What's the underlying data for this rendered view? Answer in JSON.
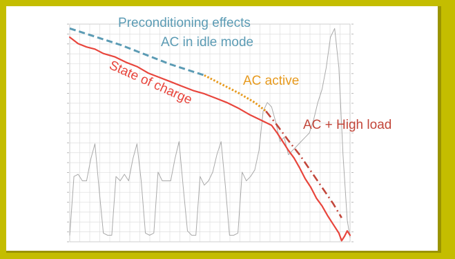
{
  "colors": {
    "background": "#c4bd00",
    "panel": "#ffffff",
    "state_of_charge": "#e8453c",
    "preconditioning": "#5b9bb4",
    "ac_active": "#e79a1e",
    "high_load": "#c2463a",
    "speed_trace": "#a9a9a9",
    "grid": "#dedede"
  },
  "chart_data": {
    "type": "line",
    "title": "",
    "xlabel": "",
    "ylabel": "",
    "xlim": [
      0,
      100
    ],
    "ylim": [
      0,
      100
    ],
    "grid": true,
    "legend": "none",
    "annotations": {
      "preconditioning": "Preconditioning effects",
      "idle_mode": "AC in idle mode",
      "state_of_charge": "State of charge",
      "ac_active": "AC active",
      "high_load": "AC + High load"
    },
    "series": [
      {
        "key": "soc",
        "style": "solid",
        "color": "#e8453c",
        "x": [
          0,
          3,
          6,
          9,
          12,
          16,
          20,
          24,
          28,
          32,
          36,
          40,
          44,
          48,
          52,
          56,
          60,
          64,
          68,
          72,
          74,
          76,
          78,
          80,
          82,
          84,
          86,
          88,
          90,
          92,
          94,
          96,
          97,
          98,
          99,
          100
        ],
        "y": [
          94,
          91,
          89.5,
          88.5,
          86.5,
          85,
          82.5,
          80.5,
          77.5,
          75.5,
          73.5,
          71.5,
          69.5,
          68,
          66,
          64,
          61.5,
          58.5,
          56,
          53.5,
          50,
          46,
          42,
          38.5,
          34,
          29,
          25,
          20,
          16.5,
          12,
          8,
          4,
          0.5,
          2.5,
          5,
          3
        ]
      },
      {
        "key": "preconditioning",
        "style": "dashed",
        "color": "#5b9bb4",
        "x": [
          0,
          6,
          12,
          18,
          24,
          30,
          36,
          42,
          48
        ],
        "y": [
          98,
          95.5,
          93,
          90.5,
          87.5,
          84.5,
          81.5,
          79,
          76.5
        ]
      },
      {
        "key": "ac_active",
        "style": "dotted",
        "color": "#e79a1e",
        "x": [
          48,
          54,
          60,
          66,
          70
        ],
        "y": [
          76.5,
          72.5,
          68.5,
          64,
          60
        ]
      },
      {
        "key": "high_load",
        "style": "dashdot",
        "color": "#c2463a",
        "x": [
          70,
          74,
          78,
          82,
          86,
          90,
          94,
          97
        ],
        "y": [
          60,
          53.5,
          46.5,
          40,
          32.5,
          25,
          17.5,
          11
        ]
      },
      {
        "key": "speed",
        "style": "thin",
        "color": "#a9a9a9",
        "x": [
          0,
          1.5,
          3,
          4.5,
          6,
          7.5,
          9,
          10.5,
          12,
          13.5,
          15,
          16.5,
          18,
          19.5,
          21,
          22.5,
          24,
          25.5,
          27,
          28.5,
          30,
          31.5,
          33,
          34.5,
          36,
          37.5,
          39,
          40.5,
          42,
          43.5,
          45,
          46.5,
          48,
          49.5,
          51,
          52.5,
          54,
          55.5,
          57,
          58.5,
          60,
          61.5,
          63,
          64.5,
          66,
          67.5,
          69,
          70.5,
          72,
          73.5,
          75,
          76.5,
          78,
          79.5,
          81,
          82.5,
          84,
          85.5,
          87,
          88.5,
          90,
          91.5,
          93,
          94.5,
          96,
          97.5,
          99,
          100
        ],
        "y": [
          3,
          30,
          31,
          28,
          28,
          38,
          45,
          24,
          4,
          3,
          3,
          30,
          28,
          31,
          28,
          38,
          45,
          28,
          4,
          3,
          4,
          32,
          28,
          28,
          28,
          38,
          46,
          25,
          5,
          3,
          3,
          30,
          26,
          28,
          32,
          40,
          46,
          26,
          3,
          3,
          4,
          32,
          28,
          30,
          33,
          42,
          60,
          64,
          62,
          55,
          46,
          48,
          40,
          42,
          44,
          46,
          48,
          50,
          56,
          64,
          70,
          80,
          94,
          98,
          80,
          40,
          10,
          2
        ]
      }
    ]
  }
}
